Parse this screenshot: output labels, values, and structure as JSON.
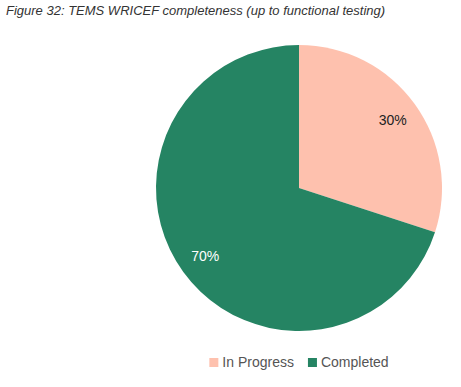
{
  "chart_data": {
    "type": "pie",
    "title": "Figure 32: TEMS WRICEF completeness (up to functional testing)",
    "categories": [
      "In Progress",
      "Completed"
    ],
    "values": [
      30,
      70
    ],
    "value_labels": [
      "30%",
      "70%"
    ],
    "colors": [
      "#fec1ae",
      "#258463"
    ],
    "data_labels": true,
    "legend": "bottom"
  }
}
